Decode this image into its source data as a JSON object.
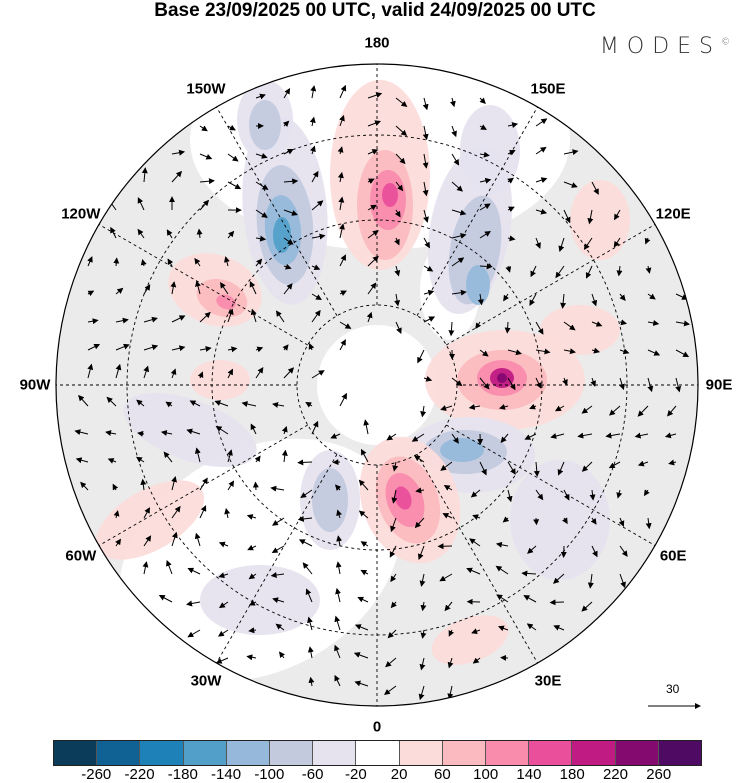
{
  "title": "Base 23/09/2025 00 UTC, valid 24/09/2025 00 UTC",
  "logo": {
    "text": "MODES",
    "mark": "©"
  },
  "longitude_labels": [
    {
      "text": "180",
      "angle": 180
    },
    {
      "text": "150E",
      "angle": 150
    },
    {
      "text": "120E",
      "angle": 120
    },
    {
      "text": "90E",
      "angle": 90
    },
    {
      "text": "60E",
      "angle": 60
    },
    {
      "text": "30E",
      "angle": 30
    },
    {
      "text": "0",
      "angle": 0
    },
    {
      "text": "30W",
      "angle": -30
    },
    {
      "text": "60W",
      "angle": -60
    },
    {
      "text": "90W",
      "angle": -90
    },
    {
      "text": "120W",
      "angle": -120
    },
    {
      "text": "150W",
      "angle": -150
    }
  ],
  "reference_vector": {
    "label": "30"
  },
  "colorbar": {
    "colors": [
      "#0b3d5a",
      "#0f6293",
      "#1e81b8",
      "#52a0c9",
      "#96b9db",
      "#c4cade",
      "#e6e3ef",
      "#ffffff",
      "#fcdcda",
      "#fbbabf",
      "#f98bad",
      "#e94f9b",
      "#c01b83",
      "#850a70",
      "#4f0a63"
    ],
    "ticks": [
      "-260",
      "-220",
      "-180",
      "-140",
      "-100",
      "-60",
      "-20",
      "20",
      "60",
      "100",
      "140",
      "180",
      "220",
      "260"
    ]
  }
}
